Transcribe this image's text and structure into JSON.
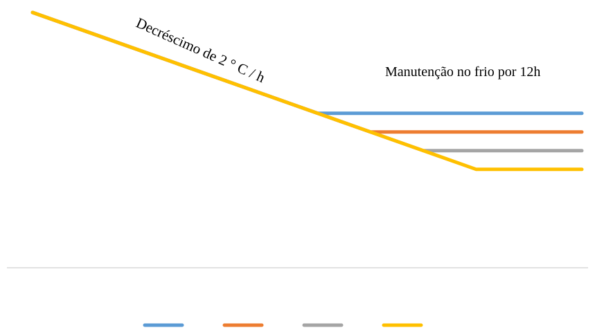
{
  "chart_data": {
    "type": "line",
    "title": "",
    "xlabel": "",
    "ylabel": "",
    "grid": false,
    "legend_position": "bottom",
    "annotations": {
      "slope": "Decréscimo de 2 ° C / h",
      "hold": "Manutenção no frio por 12h"
    },
    "series": [
      {
        "color": "#5B9BD5",
        "x": [
          0,
          13.5,
          26
        ],
        "y": [
          0,
          -27,
          -27
        ]
      },
      {
        "color": "#ED7D31",
        "x": [
          0,
          16,
          26
        ],
        "y": [
          0,
          -32,
          -32
        ]
      },
      {
        "color": "#A5A5A5",
        "x": [
          0,
          18.5,
          26
        ],
        "y": [
          0,
          -37,
          -37
        ]
      },
      {
        "color": "#FFC000",
        "x": [
          0,
          21,
          26
        ],
        "y": [
          0,
          -42,
          -42
        ]
      }
    ]
  }
}
